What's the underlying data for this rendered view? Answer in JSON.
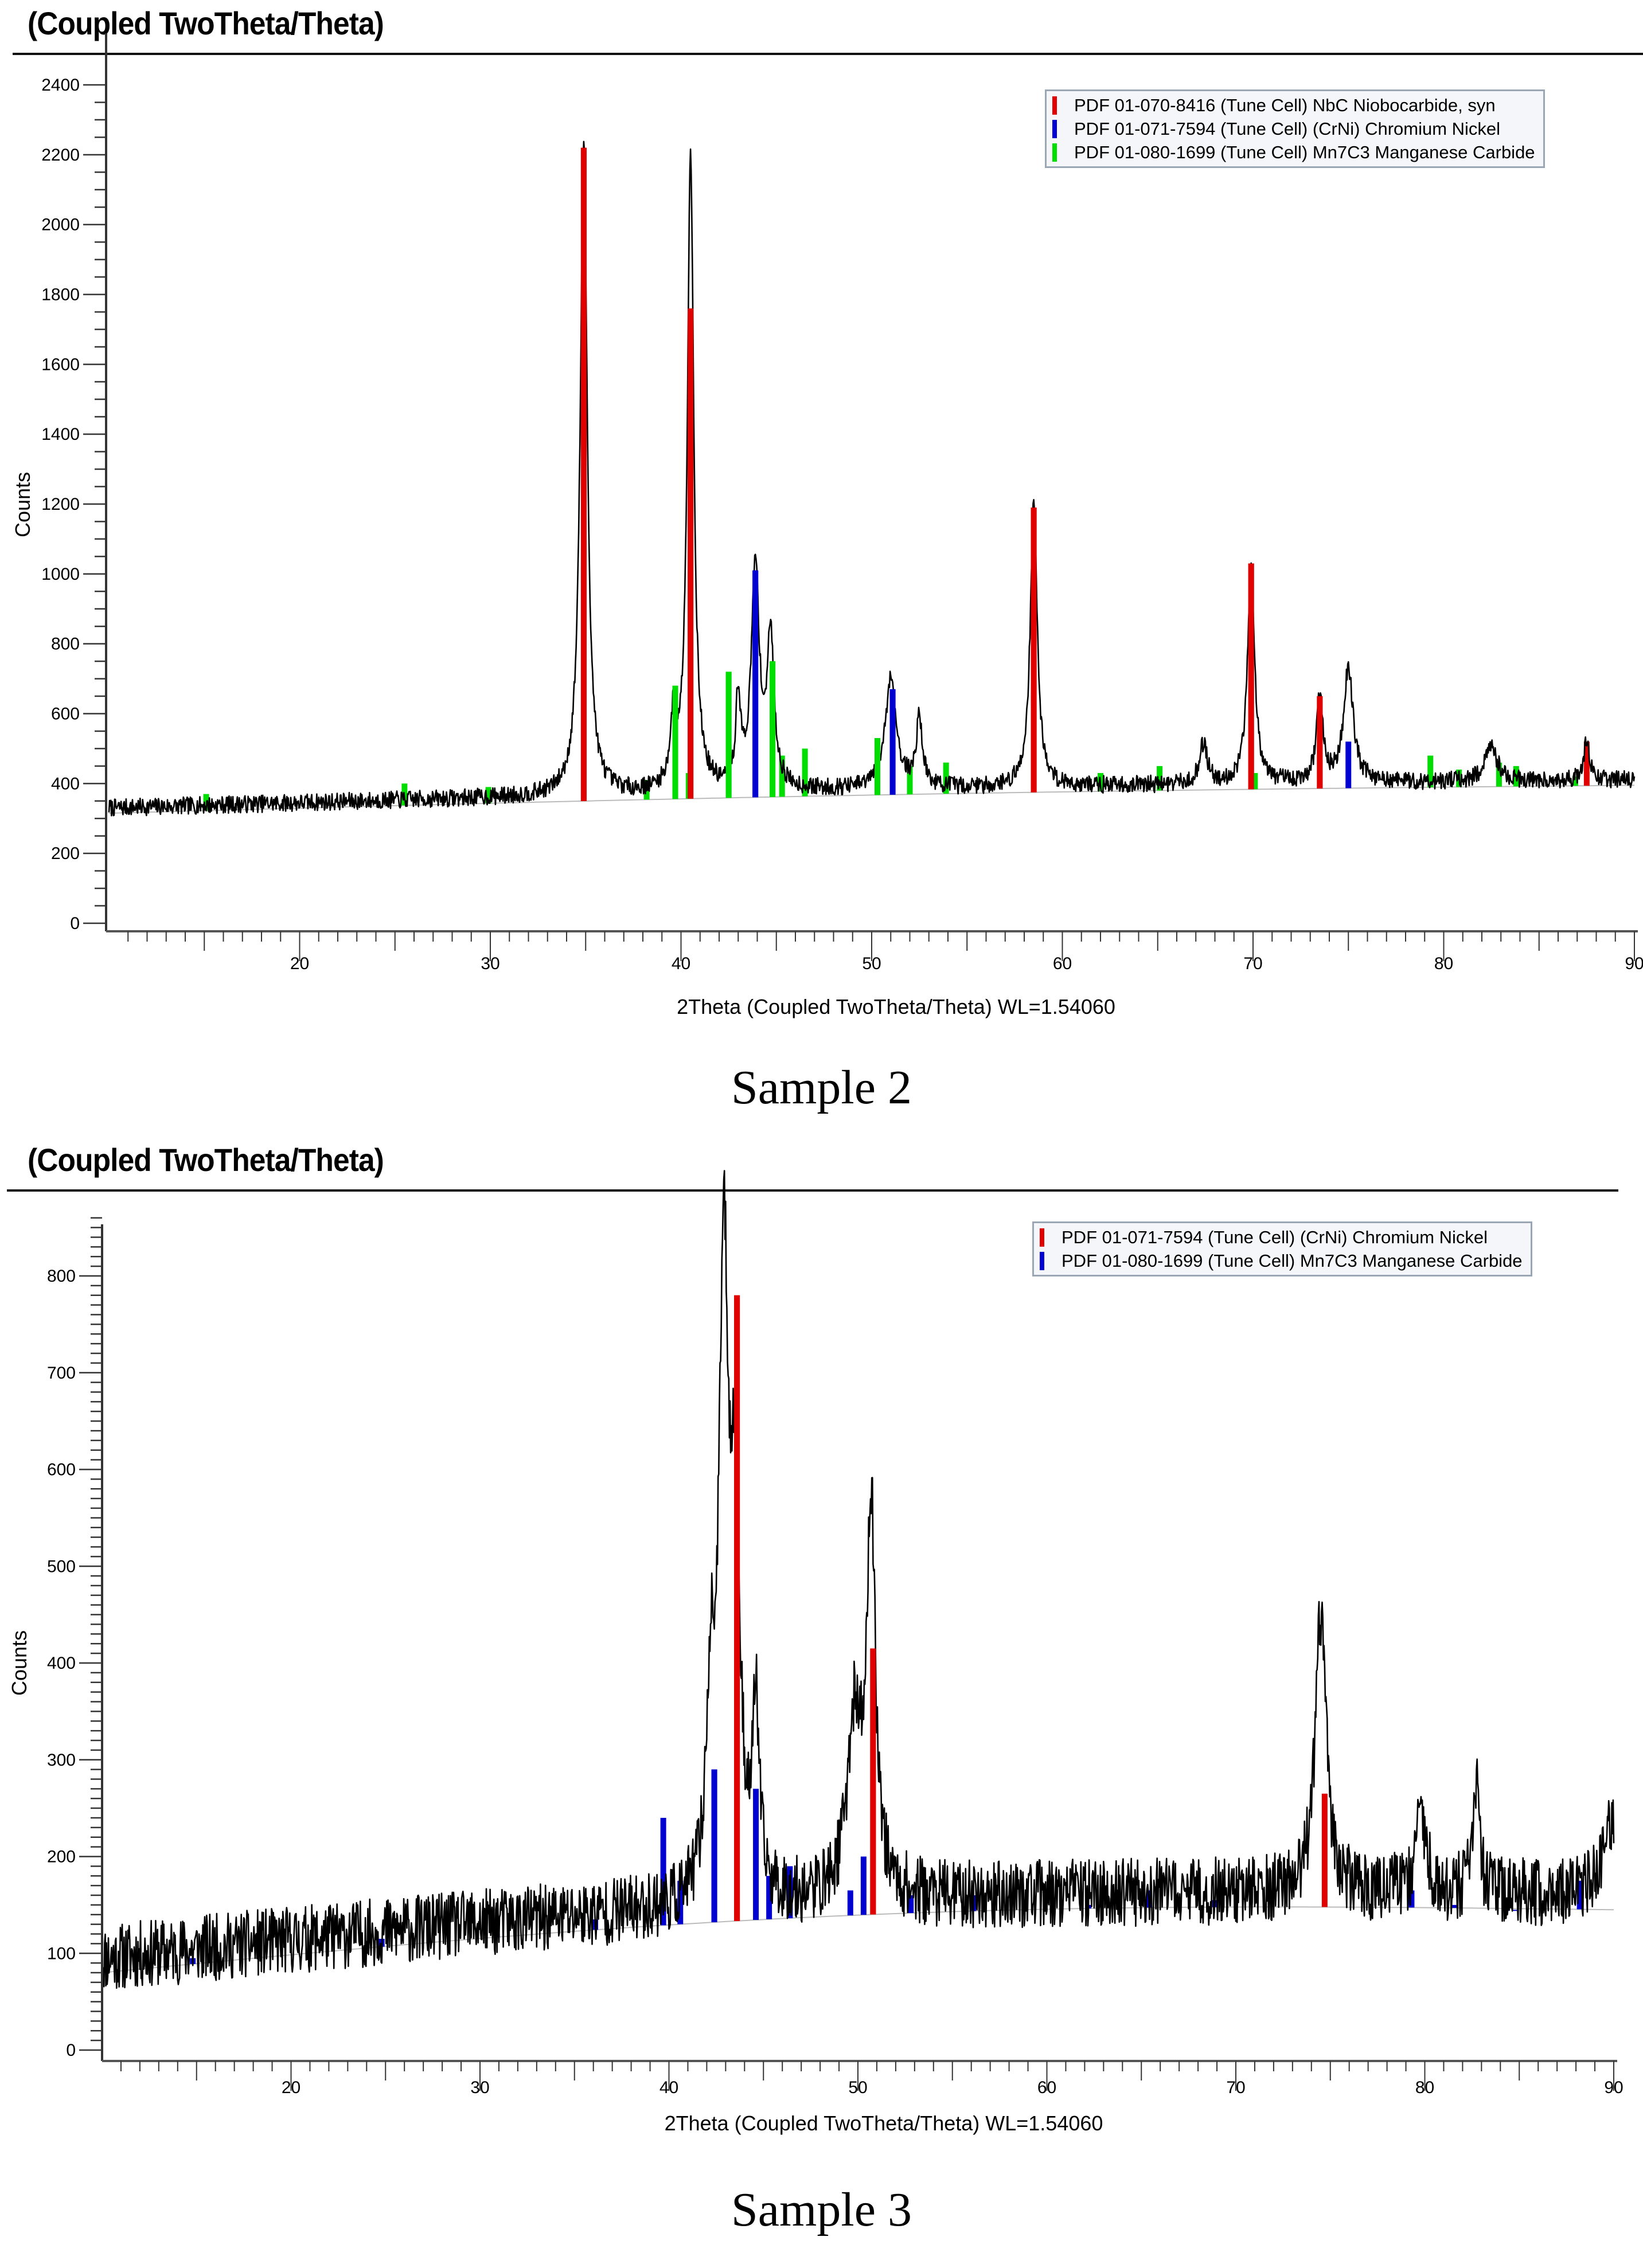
{
  "figure": {
    "panels": [
      {
        "title": "(Coupled TwoTheta/Theta)",
        "caption": "Sample 2",
        "y_axis_label": "Counts",
        "x_axis_label": "2Theta (Coupled TwoTheta/Theta) WL=1.54060",
        "legend": [
          {
            "color": "#e00000",
            "label": "PDF 01-070-8416 (Tune Cell) NbC Niobocarbide, syn"
          },
          {
            "color": "#0000d0",
            "label": "PDF 01-071-7594 (Tune Cell) (CrNi) Chromium Nickel"
          },
          {
            "color": "#00dd00",
            "label": "PDF 01-080-1699 (Tune Cell) Mn7C3 Manganese Carbide"
          }
        ]
      },
      {
        "title": "(Coupled TwoTheta/Theta)",
        "caption": "Sample 3",
        "y_axis_label": "Counts",
        "x_axis_label": "2Theta (Coupled TwoTheta/Theta) WL=1.54060",
        "legend": [
          {
            "color": "#e00000",
            "label": "PDF 01-071-7594 (Tune Cell) (CrNi) Chromium Nickel"
          },
          {
            "color": "#0000d0",
            "label": "PDF 01-080-1699 (Tune Cell) Mn7C3 Manganese Carbide"
          }
        ]
      }
    ]
  },
  "chart_data": [
    {
      "type": "line",
      "title": "(Coupled TwoTheta/Theta)",
      "caption": "Sample 2",
      "xlabel": "2Theta (Coupled TwoTheta/Theta) WL=1.54060",
      "ylabel": "Counts",
      "xlim": [
        10,
        90
      ],
      "ylim": [
        0,
        2400
      ],
      "x_ticks": [
        20,
        30,
        40,
        50,
        60,
        70,
        80,
        90
      ],
      "y_ticks": [
        0,
        200,
        400,
        600,
        800,
        1000,
        1200,
        1400,
        1600,
        1800,
        2000,
        2200,
        2400
      ],
      "grid": false,
      "legend_position": "top-right",
      "background": {
        "start": 330,
        "mid": 380,
        "end": 410,
        "noise": 25
      },
      "observed_peaks": [
        {
          "x": 34.9,
          "y": 2230,
          "w": 0.22
        },
        {
          "x": 39.6,
          "y": 560,
          "w": 0.18
        },
        {
          "x": 40.5,
          "y": 2200,
          "w": 0.2
        },
        {
          "x": 43.0,
          "y": 630,
          "w": 0.15
        },
        {
          "x": 43.9,
          "y": 1010,
          "w": 0.25
        },
        {
          "x": 44.7,
          "y": 800,
          "w": 0.22
        },
        {
          "x": 51.0,
          "y": 700,
          "w": 0.35
        },
        {
          "x": 52.5,
          "y": 580,
          "w": 0.2
        },
        {
          "x": 58.5,
          "y": 1200,
          "w": 0.22
        },
        {
          "x": 67.4,
          "y": 510,
          "w": 0.25
        },
        {
          "x": 69.9,
          "y": 1030,
          "w": 0.22
        },
        {
          "x": 73.5,
          "y": 650,
          "w": 0.2
        },
        {
          "x": 75.0,
          "y": 730,
          "w": 0.3
        },
        {
          "x": 82.5,
          "y": 500,
          "w": 0.4
        },
        {
          "x": 87.5,
          "y": 520,
          "w": 0.2
        }
      ],
      "series": [
        {
          "name": "PDF 01-070-8416 (Tune Cell) NbC Niobocarbide, syn",
          "color": "#e00000",
          "sticks": [
            {
              "x": 34.9,
              "y": 2220
            },
            {
              "x": 40.5,
              "y": 1760
            },
            {
              "x": 58.5,
              "y": 1190
            },
            {
              "x": 69.9,
              "y": 1030
            },
            {
              "x": 73.5,
              "y": 650
            },
            {
              "x": 87.5,
              "y": 520
            }
          ]
        },
        {
          "name": "PDF 01-071-7594 (Tune Cell) (CrNi) Chromium Nickel",
          "color": "#0000d0",
          "sticks": [
            {
              "x": 43.9,
              "y": 1010
            },
            {
              "x": 51.1,
              "y": 670
            },
            {
              "x": 75.0,
              "y": 520
            }
          ]
        },
        {
          "name": "PDF 01-080-1699 (Tune Cell) Mn7C3 Manganese Carbide",
          "color": "#00dd00",
          "sticks": [
            {
              "x": 15.1,
              "y": 370
            },
            {
              "x": 25.5,
              "y": 400
            },
            {
              "x": 29.9,
              "y": 390
            },
            {
              "x": 38.2,
              "y": 410
            },
            {
              "x": 39.7,
              "y": 680
            },
            {
              "x": 40.4,
              "y": 430
            },
            {
              "x": 42.5,
              "y": 720
            },
            {
              "x": 44.8,
              "y": 750
            },
            {
              "x": 45.3,
              "y": 480
            },
            {
              "x": 46.5,
              "y": 500
            },
            {
              "x": 50.3,
              "y": 530
            },
            {
              "x": 52.0,
              "y": 450
            },
            {
              "x": 53.9,
              "y": 460
            },
            {
              "x": 62.0,
              "y": 430
            },
            {
              "x": 65.1,
              "y": 450
            },
            {
              "x": 70.1,
              "y": 430
            },
            {
              "x": 79.3,
              "y": 480
            },
            {
              "x": 80.8,
              "y": 440
            },
            {
              "x": 82.9,
              "y": 460
            },
            {
              "x": 83.8,
              "y": 450
            },
            {
              "x": 86.9,
              "y": 420
            }
          ]
        }
      ]
    },
    {
      "type": "line",
      "title": "(Coupled TwoTheta/Theta)",
      "caption": "Sample 3",
      "xlabel": "2Theta (Coupled TwoTheta/Theta) WL=1.54060",
      "ylabel": "Counts",
      "xlim": [
        10,
        90
      ],
      "ylim": [
        0,
        850
      ],
      "x_ticks": [
        20,
        30,
        40,
        50,
        60,
        70,
        80,
        90
      ],
      "y_ticks": [
        0,
        100,
        200,
        300,
        400,
        500,
        600,
        700,
        800
      ],
      "grid": false,
      "legend_position": "top-right",
      "background": {
        "start": 95,
        "mid": 150,
        "end": 160,
        "noise": 35
      },
      "observed_peaks": [
        {
          "x": 42.2,
          "y": 330,
          "w": 0.25
        },
        {
          "x": 42.9,
          "y": 790,
          "w": 0.3
        },
        {
          "x": 43.5,
          "y": 510,
          "w": 0.3
        },
        {
          "x": 44.6,
          "y": 340,
          "w": 0.2
        },
        {
          "x": 49.8,
          "y": 330,
          "w": 0.45
        },
        {
          "x": 50.7,
          "y": 545,
          "w": 0.28
        },
        {
          "x": 74.5,
          "y": 450,
          "w": 0.35
        },
        {
          "x": 79.8,
          "y": 250,
          "w": 0.3
        },
        {
          "x": 82.7,
          "y": 275,
          "w": 0.2
        },
        {
          "x": 90.0,
          "y": 235,
          "w": 0.6
        }
      ],
      "series": [
        {
          "name": "PDF 01-071-7594 (Tune Cell) (CrNi) Chromium Nickel",
          "color": "#e00000",
          "sticks": [
            {
              "x": 43.6,
              "y": 780
            },
            {
              "x": 50.8,
              "y": 415
            },
            {
              "x": 74.7,
              "y": 265
            }
          ]
        },
        {
          "name": "PDF 01-080-1699 (Tune Cell) Mn7C3 Manganese Carbide",
          "color": "#0000d0",
          "sticks": [
            {
              "x": 14.8,
              "y": 95
            },
            {
              "x": 24.8,
              "y": 115
            },
            {
              "x": 30.9,
              "y": 120
            },
            {
              "x": 36.1,
              "y": 135
            },
            {
              "x": 39.7,
              "y": 240
            },
            {
              "x": 40.6,
              "y": 175
            },
            {
              "x": 42.4,
              "y": 290
            },
            {
              "x": 44.6,
              "y": 270
            },
            {
              "x": 45.3,
              "y": 180
            },
            {
              "x": 46.4,
              "y": 190
            },
            {
              "x": 49.6,
              "y": 165
            },
            {
              "x": 50.3,
              "y": 200
            },
            {
              "x": 52.8,
              "y": 160
            },
            {
              "x": 56.1,
              "y": 160
            },
            {
              "x": 62.2,
              "y": 150
            },
            {
              "x": 65.4,
              "y": 165
            },
            {
              "x": 68.9,
              "y": 155
            },
            {
              "x": 79.3,
              "y": 165
            },
            {
              "x": 81.6,
              "y": 150
            },
            {
              "x": 84.8,
              "y": 145
            },
            {
              "x": 88.2,
              "y": 175
            }
          ]
        }
      ]
    }
  ]
}
